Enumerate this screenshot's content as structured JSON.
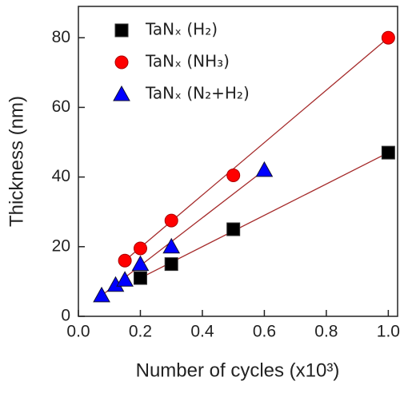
{
  "chart_data": {
    "type": "scatter",
    "x_label": "Number of cycles (x10³)",
    "y_label": "Thickness (nm)",
    "xlim": [
      0,
      1.03
    ],
    "ylim": [
      0,
      89
    ],
    "xticks": [
      {
        "value": 0,
        "label": "0.0"
      },
      0.2,
      0.4,
      0.6,
      0.8,
      {
        "value": 1,
        "label": "1.0"
      }
    ],
    "yticks": [
      0,
      20,
      40,
      60,
      80
    ],
    "legend": "upper left",
    "fit_line_color": "#a52a2a",
    "series": [
      {
        "name": "TaNₓ (H₂)",
        "color": "#000000",
        "marker": "square",
        "x": [
          0.2,
          0.3,
          0.5,
          1.0
        ],
        "values": [
          11,
          15,
          25,
          47
        ]
      },
      {
        "name": "TaNₓ (NH₃)",
        "color": "#ff0000",
        "marker": "circle",
        "x": [
          0.15,
          0.2,
          0.3,
          0.5,
          1.0
        ],
        "values": [
          16,
          19.5,
          27.5,
          40.5,
          80
        ]
      },
      {
        "name": "TaNₓ (N₂+H₂)",
        "color": "#0000ff",
        "marker": "triangle",
        "x": [
          0.075,
          0.12,
          0.15,
          0.2,
          0.3,
          0.6
        ],
        "values": [
          6,
          9,
          10.5,
          15,
          20,
          42
        ]
      }
    ]
  }
}
